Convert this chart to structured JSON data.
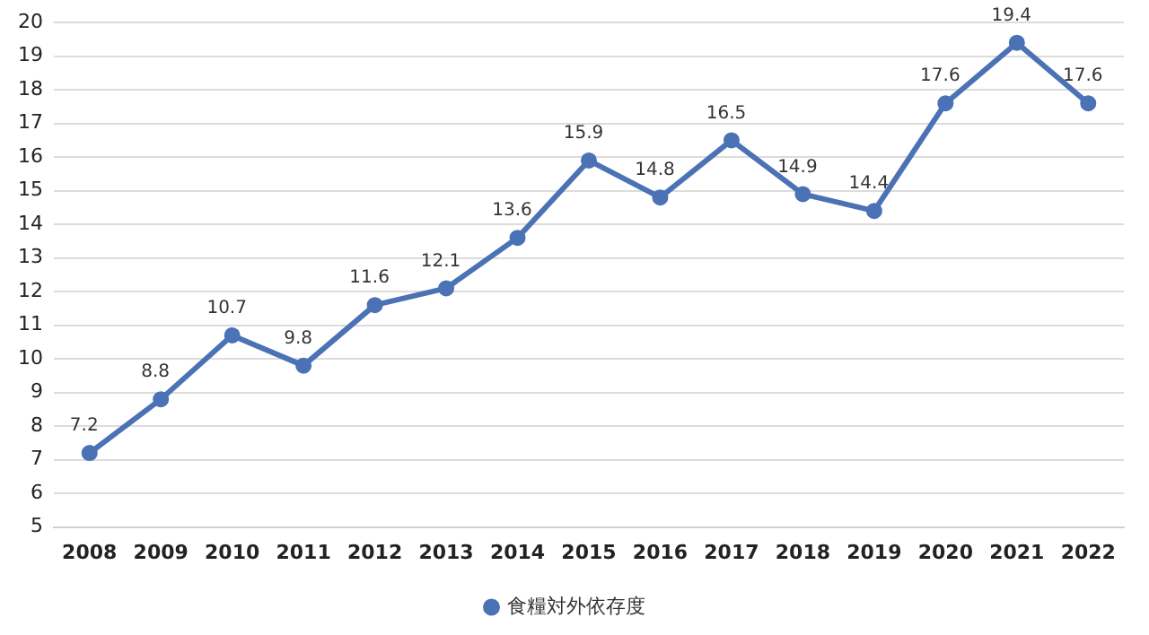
{
  "chart_data": {
    "type": "line",
    "categories": [
      "2008",
      "2009",
      "2010",
      "2011",
      "2012",
      "2013",
      "2014",
      "2015",
      "2016",
      "2017",
      "2018",
      "2019",
      "2020",
      "2021",
      "2022"
    ],
    "series": [
      {
        "name": "食糧対外依存度",
        "color": "#4a72b5",
        "values": [
          7.2,
          8.8,
          10.7,
          9.8,
          11.6,
          12.1,
          13.6,
          15.9,
          14.8,
          16.5,
          14.9,
          14.4,
          17.6,
          19.4,
          17.6
        ]
      }
    ],
    "ylim": [
      5,
      20
    ],
    "yticks": [
      5,
      6,
      7,
      8,
      9,
      10,
      11,
      12,
      13,
      14,
      15,
      16,
      17,
      18,
      19,
      20
    ],
    "grid": "y",
    "legend": "bottom",
    "marker": "circle",
    "line_style": "solid",
    "data_labels": true
  }
}
